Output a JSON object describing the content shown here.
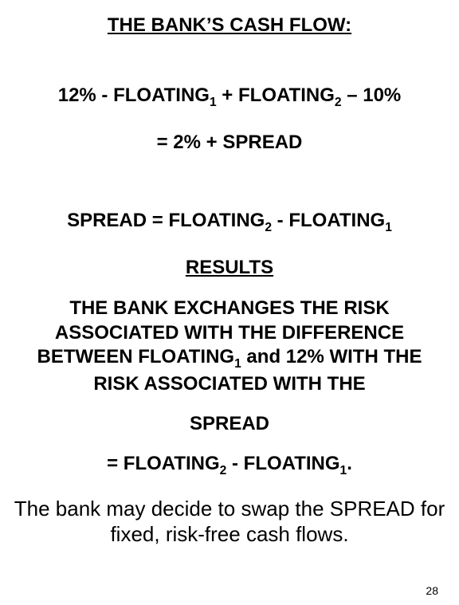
{
  "title": "THE BANK’S CASH FLOW:",
  "eq1_a": "12% - FLOATING",
  "eq1_s1": "1",
  "eq1_b": " + FLOATING",
  "eq1_s2": "2",
  "eq1_c": " – 10%",
  "eq2": "= 2% + SPREAD",
  "eq3_a": "SPREAD = FLOATING",
  "eq3_s1": "2",
  "eq3_b": " - FLOATING",
  "eq3_s2": "1",
  "results": "RESULTS",
  "para_a": "THE BANK EXCHANGES THE RISK ASSOCIATED WITH THE DIFFERENCE BETWEEN FLOATING",
  "para_s1": "1",
  "para_b": " and 12% WITH THE RISK ASSOCIATED WITH THE",
  "spread": "SPREAD",
  "eq4_a": "= FLOATING",
  "eq4_s1": "2",
  "eq4_b": " - FLOATING",
  "eq4_s2": "1",
  "eq4_c": ".",
  "closing": "The bank may decide to swap the SPREAD for fixed, risk-free cash flows.",
  "page_number": "28",
  "colors": {
    "background": "#ffffff",
    "text": "#000000"
  },
  "typography": {
    "main_fontsize_pt": 18,
    "closing_fontsize_pt": 20,
    "pagenum_fontsize_pt": 11,
    "font_family": "Arial",
    "weight_main": "bold",
    "weight_closing": "normal"
  }
}
